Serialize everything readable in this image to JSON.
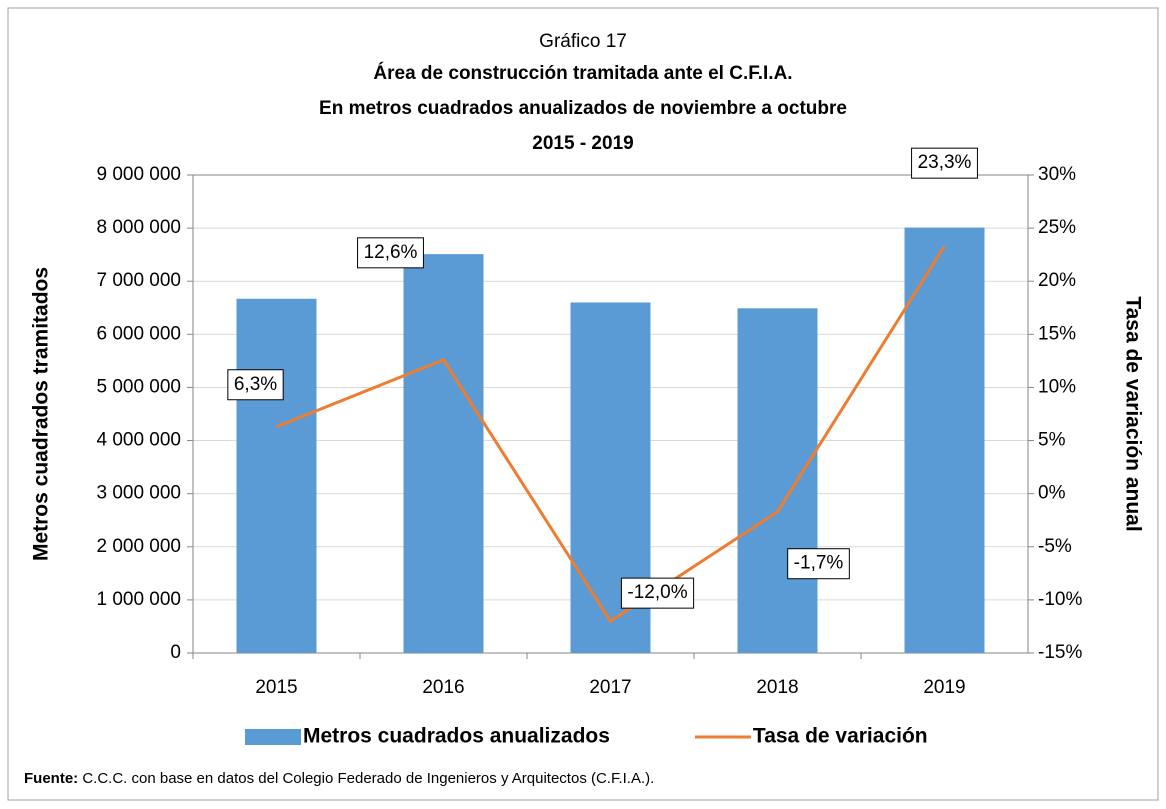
{
  "chart_data": {
    "type": "combo",
    "title": "Gráfico 17",
    "subtitle": [
      "Área de construcción tramitada ante el C.F.I.A.",
      "En metros cuadrados anualizados de noviembre a octubre",
      "2015 - 2019"
    ],
    "categories": [
      "2015",
      "2016",
      "2017",
      "2018",
      "2019"
    ],
    "series": [
      {
        "name": "Metros cuadrados anualizados",
        "type": "bar",
        "color": "#5b9bd5",
        "values": [
          6670000,
          7510000,
          6600000,
          6490000,
          8010000
        ]
      },
      {
        "name": "Tasa de variación",
        "type": "line",
        "axis": "y2",
        "color": "#ed7d31",
        "values": [
          6.3,
          12.6,
          -12.0,
          -1.7,
          23.3
        ],
        "value_labels": [
          "6,3%",
          "12,6%",
          "-12,0%",
          "-1,7%",
          "23,3%"
        ]
      }
    ],
    "ylabel": "Metros cuadrados tramitados",
    "y2label": "Tasa de variación anual",
    "ylim": [
      0,
      9000000
    ],
    "yticks": [
      0,
      {
        "value": 1000000,
        "label": "1 000 000"
      },
      {
        "value": 2000000,
        "label": "2 000 000"
      },
      {
        "value": 3000000,
        "label": "3 000 000"
      },
      {
        "value": 4000000,
        "label": "4 000 000"
      },
      {
        "value": 5000000,
        "label": "5 000 000"
      },
      {
        "value": 6000000,
        "label": "6 000 000"
      },
      {
        "value": 7000000,
        "label": "7 000 000"
      },
      {
        "value": 8000000,
        "label": "8 000 000"
      },
      {
        "value": 9000000,
        "label": "9 000 000"
      }
    ],
    "y2lim": [
      -15,
      30
    ],
    "y2ticks": [
      {
        "value": -15,
        "label": "-15%"
      },
      {
        "value": -10,
        "label": "-10%"
      },
      {
        "value": -5,
        "label": "-5%"
      },
      {
        "value": 0,
        "label": "0%"
      },
      {
        "value": 5,
        "label": "5%"
      },
      {
        "value": 10,
        "label": "10%"
      },
      {
        "value": 15,
        "label": "15%"
      },
      {
        "value": 20,
        "label": "20%"
      },
      {
        "value": 25,
        "label": "25%"
      },
      {
        "value": 30,
        "label": "30%"
      }
    ],
    "grid": true,
    "legend": "bottom",
    "source": {
      "label": "Fuente:",
      "text": "C.C.C. con base en datos del Colegio Federado de Ingenieros y Arquitectos (C.F.I.A.)."
    }
  }
}
